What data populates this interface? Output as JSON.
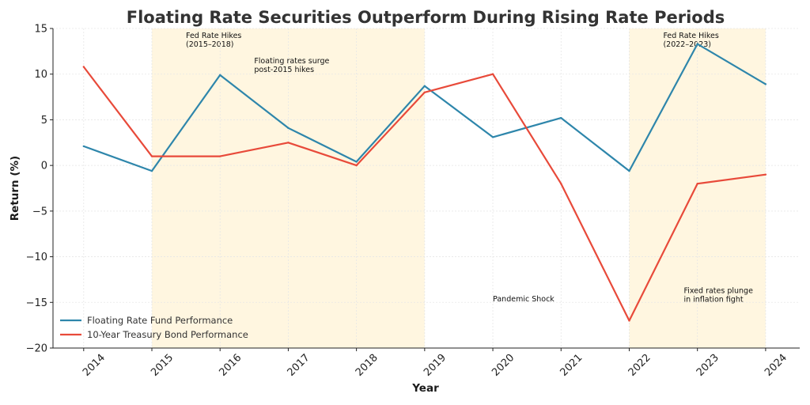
{
  "chart_data": {
    "type": "line",
    "title": "Floating Rate Securities Outperform During Rising Rate Periods",
    "xlabel": "Year",
    "ylabel": "Return (%)",
    "x": [
      2014,
      2015,
      2016,
      2017,
      2018,
      2019,
      2020,
      2021,
      2022,
      2023,
      2024
    ],
    "xticks": [
      "2014",
      "2015",
      "2016",
      "2017",
      "2018",
      "2019",
      "2020",
      "2021",
      "2022",
      "2023",
      "2024"
    ],
    "ylim": [
      -20,
      15
    ],
    "yticks": [
      15,
      10,
      5,
      0,
      -5,
      -10,
      -15,
      -20
    ],
    "ytick_labels": [
      "15",
      "10",
      "5",
      "0",
      "−5",
      "−10",
      "−15",
      "−20"
    ],
    "grid": true,
    "legend_position": "lower-left",
    "series": [
      {
        "name": "Floating Rate Fund Performance",
        "color": "#2e86ab",
        "values": [
          2.1,
          -0.6,
          9.9,
          4.1,
          0.4,
          8.7,
          3.1,
          5.2,
          -0.6,
          13.3,
          8.9
        ]
      },
      {
        "name": "10-Year Treasury Bond Performance",
        "color": "#e84a3a",
        "values": [
          10.8,
          1.0,
          1.0,
          2.5,
          0.0,
          8.0,
          10.0,
          -2.0,
          -17.0,
          -2.0,
          -1.0
        ]
      }
    ],
    "shaded_regions": [
      {
        "x_start": 2015,
        "x_end": 2019,
        "color": "#fff6e0",
        "label_lines": [
          "Fed Rate Hikes",
          "(2015–2018)"
        ]
      },
      {
        "x_start": 2022,
        "x_end": 2024,
        "color": "#fff6e0",
        "label_lines": [
          "Fed Rate Hikes",
          "(2022–2023)"
        ]
      }
    ],
    "annotations": [
      {
        "x": 2016.5,
        "y": 11.2,
        "lines": [
          "Floating rates surge",
          "post-2015 hikes"
        ]
      },
      {
        "x": 2020,
        "y": -14.9,
        "lines": [
          "Pandemic Shock"
        ]
      },
      {
        "x": 2022.8,
        "y": -14.0,
        "lines": [
          "Fixed rates plunge",
          "in inflation fight"
        ]
      }
    ]
  }
}
